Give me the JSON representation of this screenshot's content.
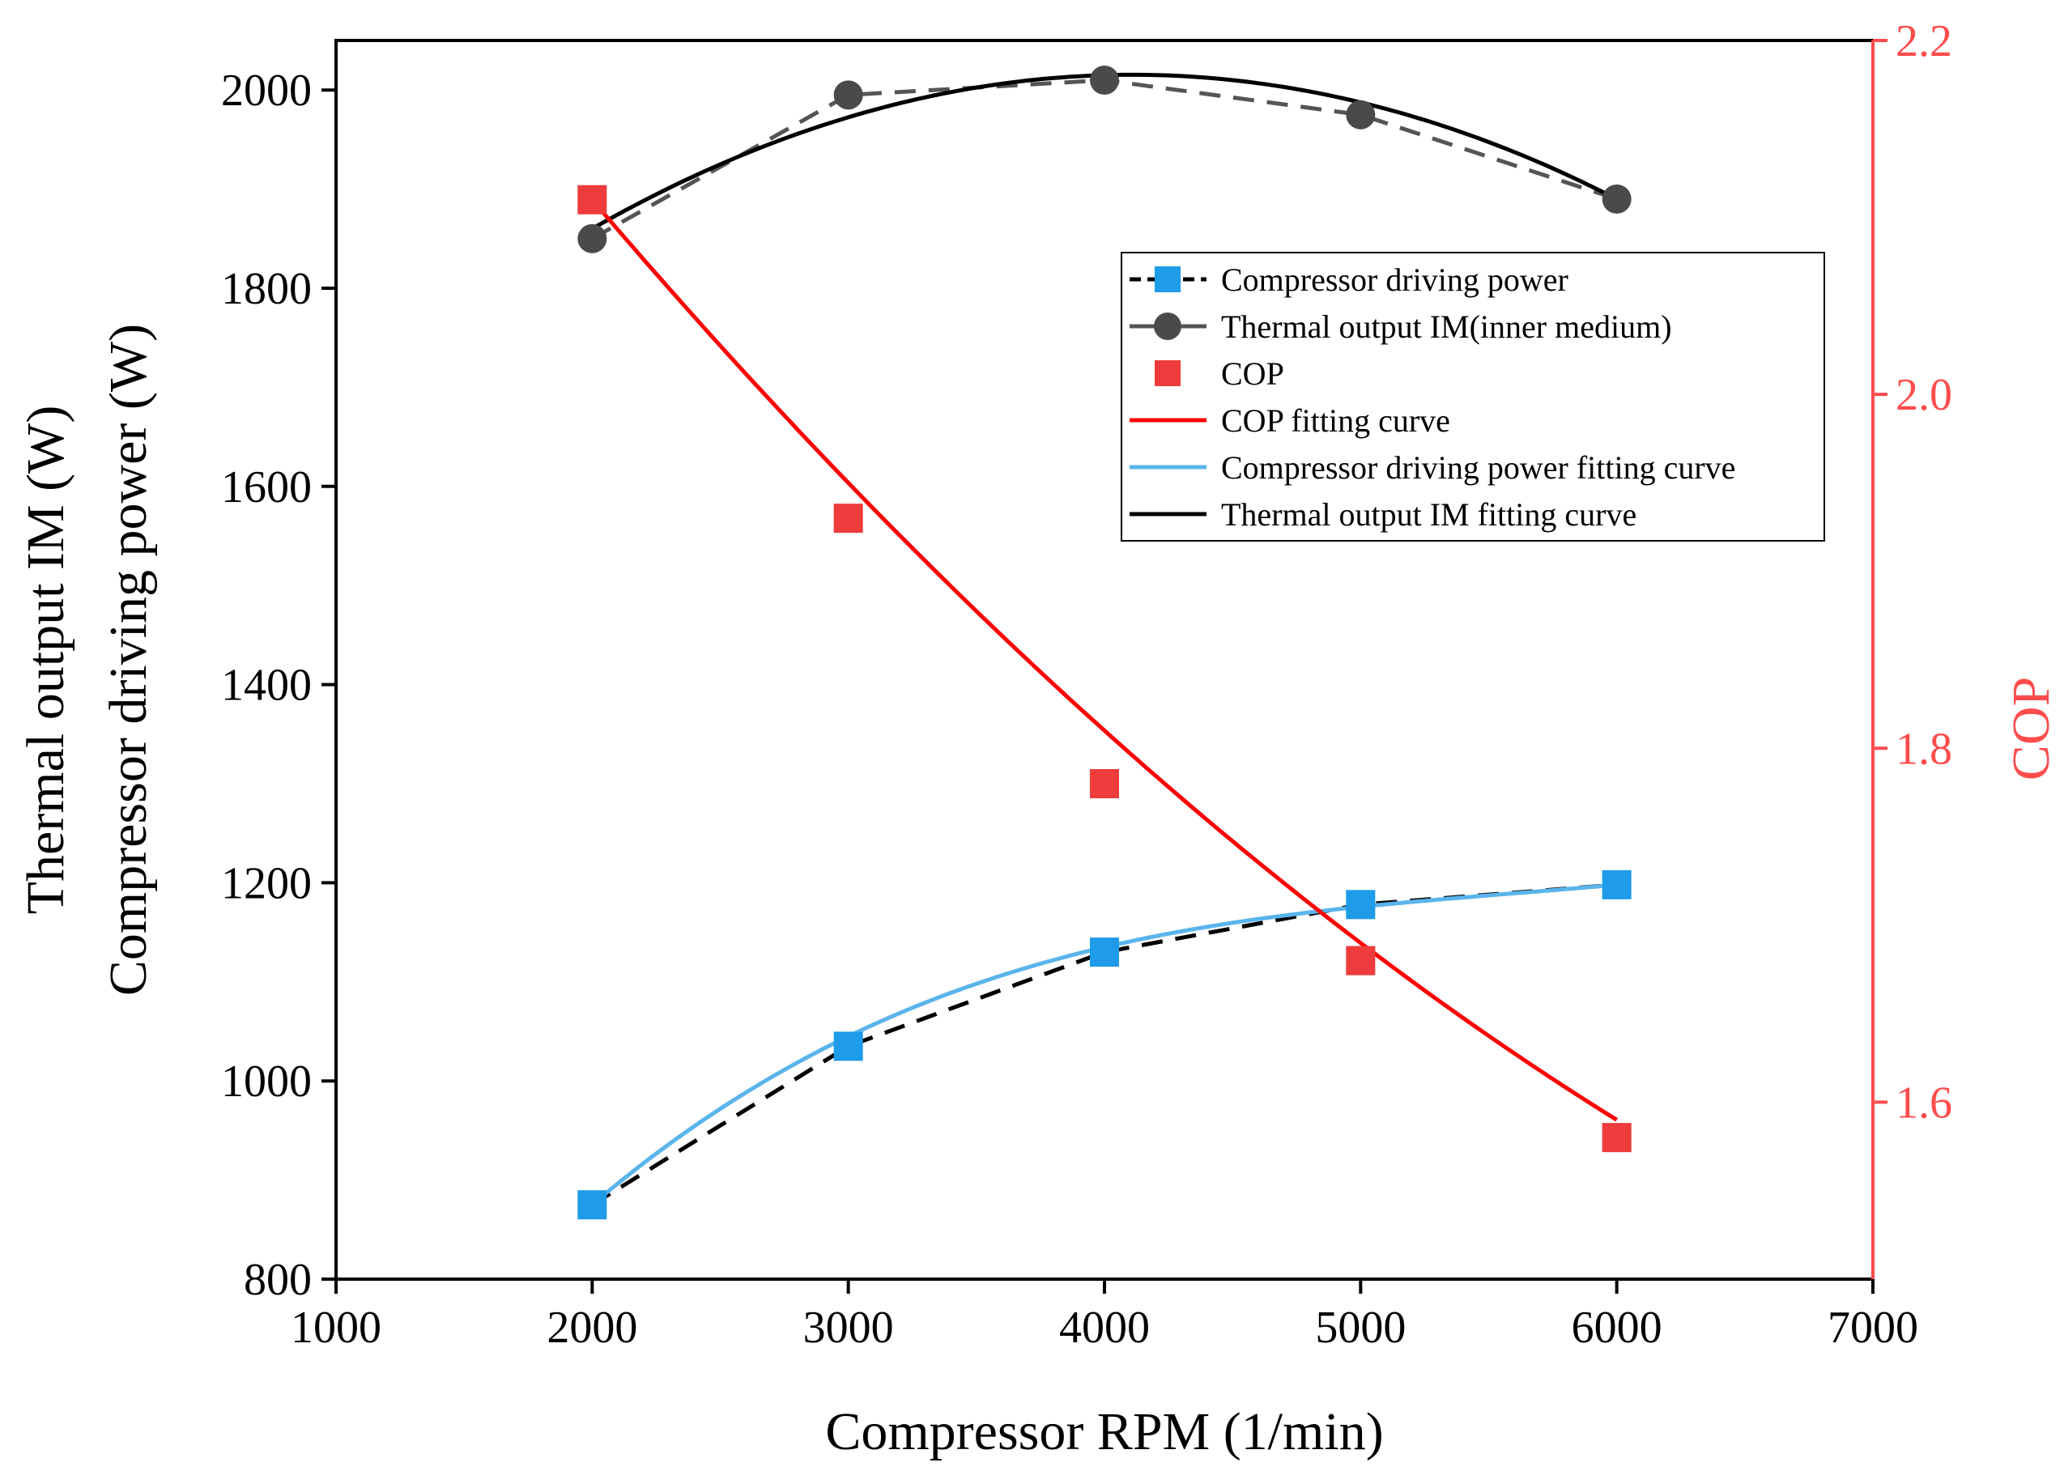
{
  "chart_data": {
    "type": "line",
    "xlabel": "Compressor RPM (1/min)",
    "ylabel_left_line1": "Thermal output IM  (W)",
    "ylabel_left_line2": "Compressor driving power  (W)",
    "ylabel_right": "COP",
    "xlim": [
      1000,
      7000
    ],
    "ylim_left": [
      800,
      2050
    ],
    "ylim_right": [
      1.5,
      2.2
    ],
    "x_ticks": [
      1000,
      2000,
      3000,
      4000,
      5000,
      6000,
      7000
    ],
    "y_left_ticks": [
      800,
      1000,
      1200,
      1400,
      1600,
      1800,
      2000
    ],
    "y_right_ticks": [
      "1.6",
      "1.8",
      "2.0",
      "2.2"
    ],
    "grid": false,
    "legend_position": "upper-right",
    "colors": {
      "compressor_marker": "#1e9be9",
      "compressor_fit": "#5ab4ec",
      "thermal_marker": "#4a4a4a",
      "thermal_line": "#555555",
      "cop_marker": "#ee3b3b",
      "cop_fit": "#ff0000",
      "right_axis": "#ff4c4c"
    },
    "x": [
      2000,
      3000,
      4000,
      5000,
      6000
    ],
    "series": [
      {
        "name": "Compressor driving power",
        "axis": "left",
        "style": "dashed-marker-square",
        "values": [
          875,
          1035,
          1130,
          1178,
          1198
        ]
      },
      {
        "name": "Thermal output IM(inner medium)",
        "axis": "left",
        "style": "dashed-marker-circle",
        "values": [
          1850,
          1995,
          2010,
          1975,
          1890
        ]
      },
      {
        "name": "COP",
        "axis": "right",
        "style": "marker-square",
        "values": [
          2.11,
          1.93,
          1.78,
          1.68,
          1.58
        ]
      },
      {
        "name": "COP fitting curve",
        "axis": "right",
        "style": "solid-curve",
        "fit": {
          "kind": "quadratic",
          "x": [
            2000,
            4000,
            6000
          ],
          "y": [
            2.11,
            1.81,
            1.59
          ]
        }
      },
      {
        "name": "Compressor driving power fitting curve",
        "axis": "left",
        "style": "solid-curve",
        "fit": {
          "kind": "cubic",
          "x": [
            2000,
            3000,
            4000,
            6000
          ],
          "y": [
            875,
            1045,
            1135,
            1198
          ]
        }
      },
      {
        "name": "Thermal output IM fitting curve",
        "axis": "left",
        "style": "solid-curve",
        "fit": {
          "kind": "quadratic",
          "x": [
            2000,
            4000,
            6000
          ],
          "y": [
            1860,
            2015,
            1890
          ]
        }
      }
    ]
  }
}
